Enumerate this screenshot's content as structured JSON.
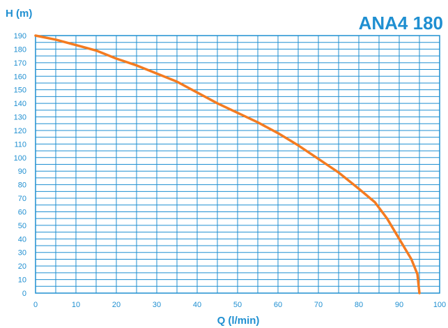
{
  "colors": {
    "accent": "#1f8fd1",
    "grid": "#1f8fd1",
    "curve": "#f47b20",
    "background": "#ffffff"
  },
  "chart_data": {
    "type": "line",
    "title": "ANA4 180",
    "xlabel": "Q (l/min)",
    "ylabel": "H (m)",
    "xlim": [
      0,
      100
    ],
    "ylim": [
      0,
      190
    ],
    "x_ticks": [
      0,
      10,
      20,
      30,
      40,
      50,
      60,
      70,
      80,
      90,
      100
    ],
    "y_ticks": [
      0,
      10,
      20,
      30,
      40,
      50,
      60,
      70,
      80,
      90,
      100,
      110,
      120,
      130,
      140,
      150,
      160,
      170,
      180,
      190
    ],
    "grid": true,
    "series": [
      {
        "x": [
          0,
          5,
          10,
          15,
          20,
          25,
          30,
          35,
          40,
          45,
          50,
          55,
          60,
          65,
          70,
          75,
          80,
          84,
          87,
          90,
          93,
          94.5,
          95
        ],
        "y": [
          190,
          187,
          183,
          179,
          173,
          168,
          162,
          156,
          148,
          140,
          133,
          126,
          118,
          109,
          99,
          89,
          77,
          67,
          55,
          40,
          25,
          14,
          0
        ]
      }
    ]
  }
}
